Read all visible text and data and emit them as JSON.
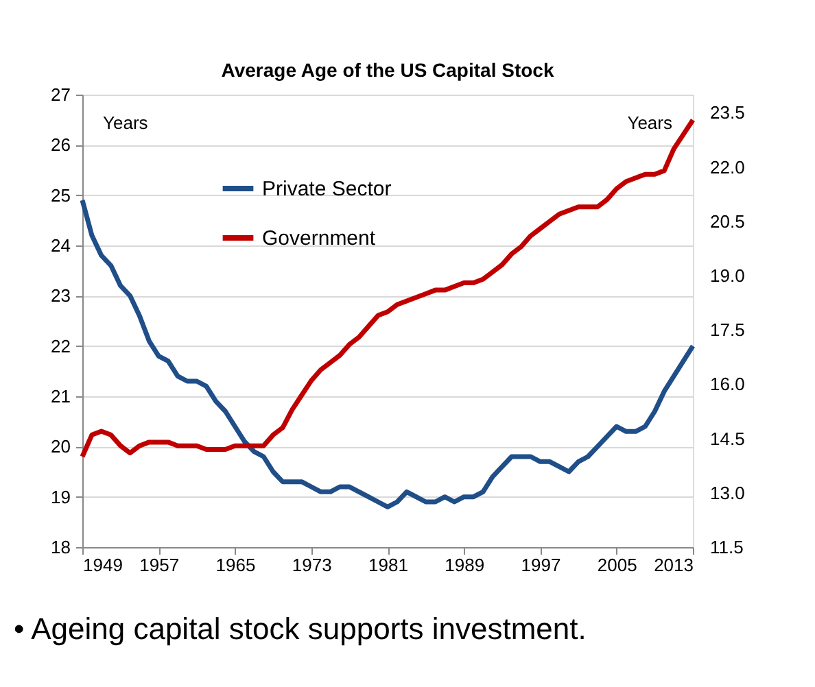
{
  "chart_data": {
    "type": "line",
    "title": "Average Age of the US Capital Stock",
    "x": [
      1949,
      1950,
      1951,
      1952,
      1953,
      1954,
      1955,
      1956,
      1957,
      1958,
      1959,
      1960,
      1961,
      1962,
      1963,
      1964,
      1965,
      1966,
      1967,
      1968,
      1969,
      1970,
      1971,
      1972,
      1973,
      1974,
      1975,
      1976,
      1977,
      1978,
      1979,
      1980,
      1981,
      1982,
      1983,
      1984,
      1985,
      1986,
      1987,
      1988,
      1989,
      1990,
      1991,
      1992,
      1993,
      1994,
      1995,
      1996,
      1997,
      1998,
      1999,
      2000,
      2001,
      2002,
      2003,
      2004,
      2005,
      2006,
      2007,
      2008,
      2009,
      2010,
      2011,
      2012,
      2013
    ],
    "series": [
      {
        "name": "Private Sector",
        "color": "#1f4e89",
        "axis": "y",
        "values": [
          24.9,
          24.2,
          23.8,
          23.6,
          23.2,
          23.0,
          22.6,
          22.1,
          21.8,
          21.7,
          21.4,
          21.3,
          21.3,
          21.2,
          20.9,
          20.7,
          20.4,
          20.1,
          19.9,
          19.8,
          19.5,
          19.3,
          19.3,
          19.3,
          19.2,
          19.1,
          19.1,
          19.2,
          19.2,
          19.1,
          19.0,
          18.9,
          18.8,
          18.9,
          19.1,
          19.0,
          18.9,
          18.9,
          19.0,
          18.9,
          19.0,
          19.0,
          19.1,
          19.4,
          19.6,
          19.8,
          19.8,
          19.8,
          19.7,
          19.7,
          19.6,
          19.5,
          19.7,
          19.8,
          20.0,
          20.2,
          20.4,
          20.3,
          20.3,
          20.4,
          20.7,
          21.1,
          21.4,
          21.7,
          22.0
        ]
      },
      {
        "name": "Government",
        "color": "#c00000",
        "axis": "y2",
        "values": [
          14.0,
          14.6,
          14.7,
          14.6,
          14.3,
          14.1,
          14.3,
          14.4,
          14.4,
          14.4,
          14.3,
          14.3,
          14.3,
          14.2,
          14.2,
          14.2,
          14.3,
          14.3,
          14.3,
          14.3,
          14.6,
          14.8,
          15.3,
          15.7,
          16.1,
          16.4,
          16.6,
          16.8,
          17.1,
          17.3,
          17.6,
          17.9,
          18.0,
          18.2,
          18.3,
          18.4,
          18.5,
          18.6,
          18.6,
          18.7,
          18.8,
          18.8,
          18.9,
          19.1,
          19.3,
          19.6,
          19.8,
          20.1,
          20.3,
          20.5,
          20.7,
          20.8,
          20.9,
          20.9,
          20.9,
          21.1,
          21.4,
          21.6,
          21.7,
          21.8,
          21.8,
          21.9,
          22.5,
          22.9,
          23.3
        ]
      }
    ],
    "xlim": [
      1949,
      2013
    ],
    "xticks": [
      1949,
      1957,
      1965,
      1973,
      1981,
      1989,
      1997,
      2005,
      2013
    ],
    "ylim": [
      18,
      27
    ],
    "yticks": [
      18,
      19,
      20,
      21,
      22,
      23,
      24,
      25,
      26,
      27
    ],
    "y2lim": [
      11.5,
      24.0
    ],
    "y2ticks": [
      11.5,
      {
        "value": 13,
        "label": "13.0"
      },
      14.5,
      {
        "value": 16,
        "label": "16.0"
      },
      17.5,
      {
        "value": 19,
        "label": "19.0"
      },
      20.5,
      {
        "value": 22,
        "label": "22.0"
      },
      23.5
    ],
    "grid": "y",
    "legend": "top left",
    "marker": "none",
    "line_style": "solid",
    "annotations": [
      "Years",
      "Years",
      "•  Ageing capital stock supports investment."
    ]
  }
}
